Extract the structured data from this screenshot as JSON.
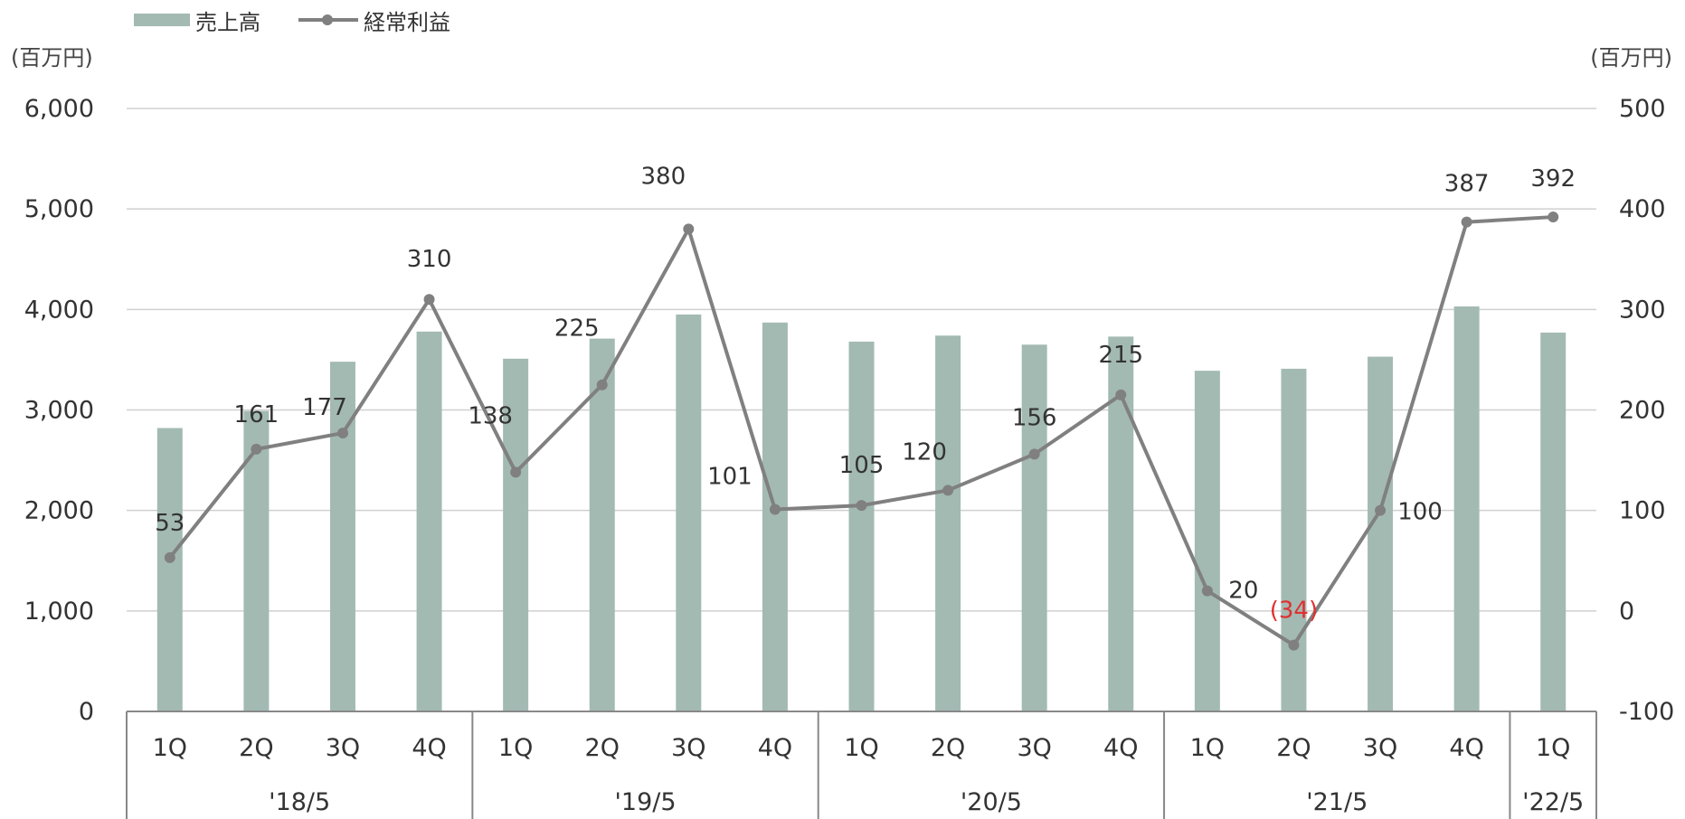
{
  "legend": {
    "bar_label": "売上高",
    "line_label": "経常利益"
  },
  "units": {
    "left": "(百万円)",
    "right": "(百万円)"
  },
  "colors": {
    "bar": "#a3bab3",
    "line": "#808080",
    "negative_label": "#e03030",
    "grid": "#d0d0d0",
    "axis": "#888888",
    "text": "#333333"
  },
  "chart_data": {
    "type": "bar",
    "categories": [
      "1Q",
      "2Q",
      "3Q",
      "4Q",
      "1Q",
      "2Q",
      "3Q",
      "4Q",
      "1Q",
      "2Q",
      "3Q",
      "4Q",
      "1Q",
      "2Q",
      "3Q",
      "4Q",
      "1Q"
    ],
    "groups": [
      {
        "label": "'18/5",
        "count": 4
      },
      {
        "label": "'19/5",
        "count": 4
      },
      {
        "label": "'20/5",
        "count": 4
      },
      {
        "label": "'21/5",
        "count": 4
      },
      {
        "label": "'22/5",
        "count": 1
      }
    ],
    "series": [
      {
        "name": "売上高",
        "type": "bar",
        "axis": "left",
        "values": [
          2820,
          2990,
          3480,
          3780,
          3510,
          3710,
          3950,
          3870,
          3680,
          3740,
          3650,
          3730,
          3390,
          3410,
          3530,
          4030,
          3770
        ]
      },
      {
        "name": "経常利益",
        "type": "line",
        "axis": "right",
        "values": [
          53,
          161,
          177,
          310,
          138,
          225,
          380,
          101,
          105,
          120,
          156,
          215,
          20,
          -34,
          100,
          387,
          392
        ],
        "labels": [
          "53",
          "161",
          "177",
          "310",
          "138",
          "225",
          "380",
          "101",
          "105",
          "120",
          "156",
          "215",
          "20",
          "(34)",
          "100",
          "387",
          "392"
        ]
      }
    ],
    "y_left": {
      "ylim": [
        0,
        6000
      ],
      "ticks": [
        0,
        1000,
        2000,
        3000,
        4000,
        5000,
        6000
      ],
      "tick_labels": [
        "0",
        "1,000",
        "2,000",
        "3,000",
        "4,000",
        "5,000",
        "6,000"
      ]
    },
    "y_right": {
      "ylim": [
        -100,
        500
      ],
      "ticks": [
        -100,
        0,
        100,
        200,
        300,
        400,
        500
      ],
      "tick_labels": [
        "-100",
        "0",
        "100",
        "200",
        "300",
        "400",
        "500"
      ]
    },
    "grid": true,
    "legend_position": "top-left"
  }
}
